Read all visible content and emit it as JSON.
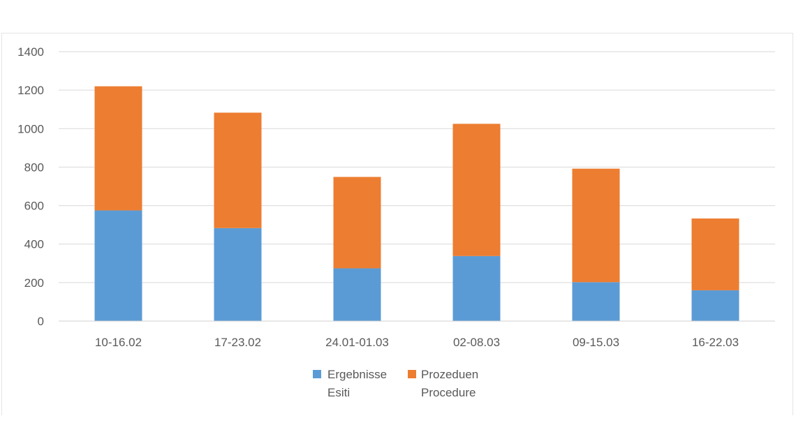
{
  "chart_data": {
    "type": "bar",
    "stacked": true,
    "categories": [
      "10-16.02",
      "17-23.02",
      "24.01-01.03",
      "02-08.03",
      "09-15.03",
      "16-22.03"
    ],
    "series": [
      {
        "name": "Ergebnisse\nEsiti",
        "color": "#5B9BD5",
        "values": [
          575,
          483,
          274,
          338,
          202,
          160
        ]
      },
      {
        "name": "Prozeduen\nProcedure",
        "color": "#ED7D31",
        "values": [
          645,
          600,
          475,
          687,
          590,
          373
        ]
      }
    ],
    "ylim": [
      0,
      1400
    ],
    "yticks": [
      0,
      200,
      400,
      600,
      800,
      1000,
      1200,
      1400
    ],
    "grid": true,
    "legend_position": "bottom",
    "legend": [
      {
        "line1": "Ergebnisse",
        "line2": "Esiti",
        "color": "#5B9BD5"
      },
      {
        "line1": "Prozeduen",
        "line2": "Procedure",
        "color": "#ED7D31"
      }
    ],
    "title": "",
    "xlabel": "",
    "ylabel": ""
  }
}
